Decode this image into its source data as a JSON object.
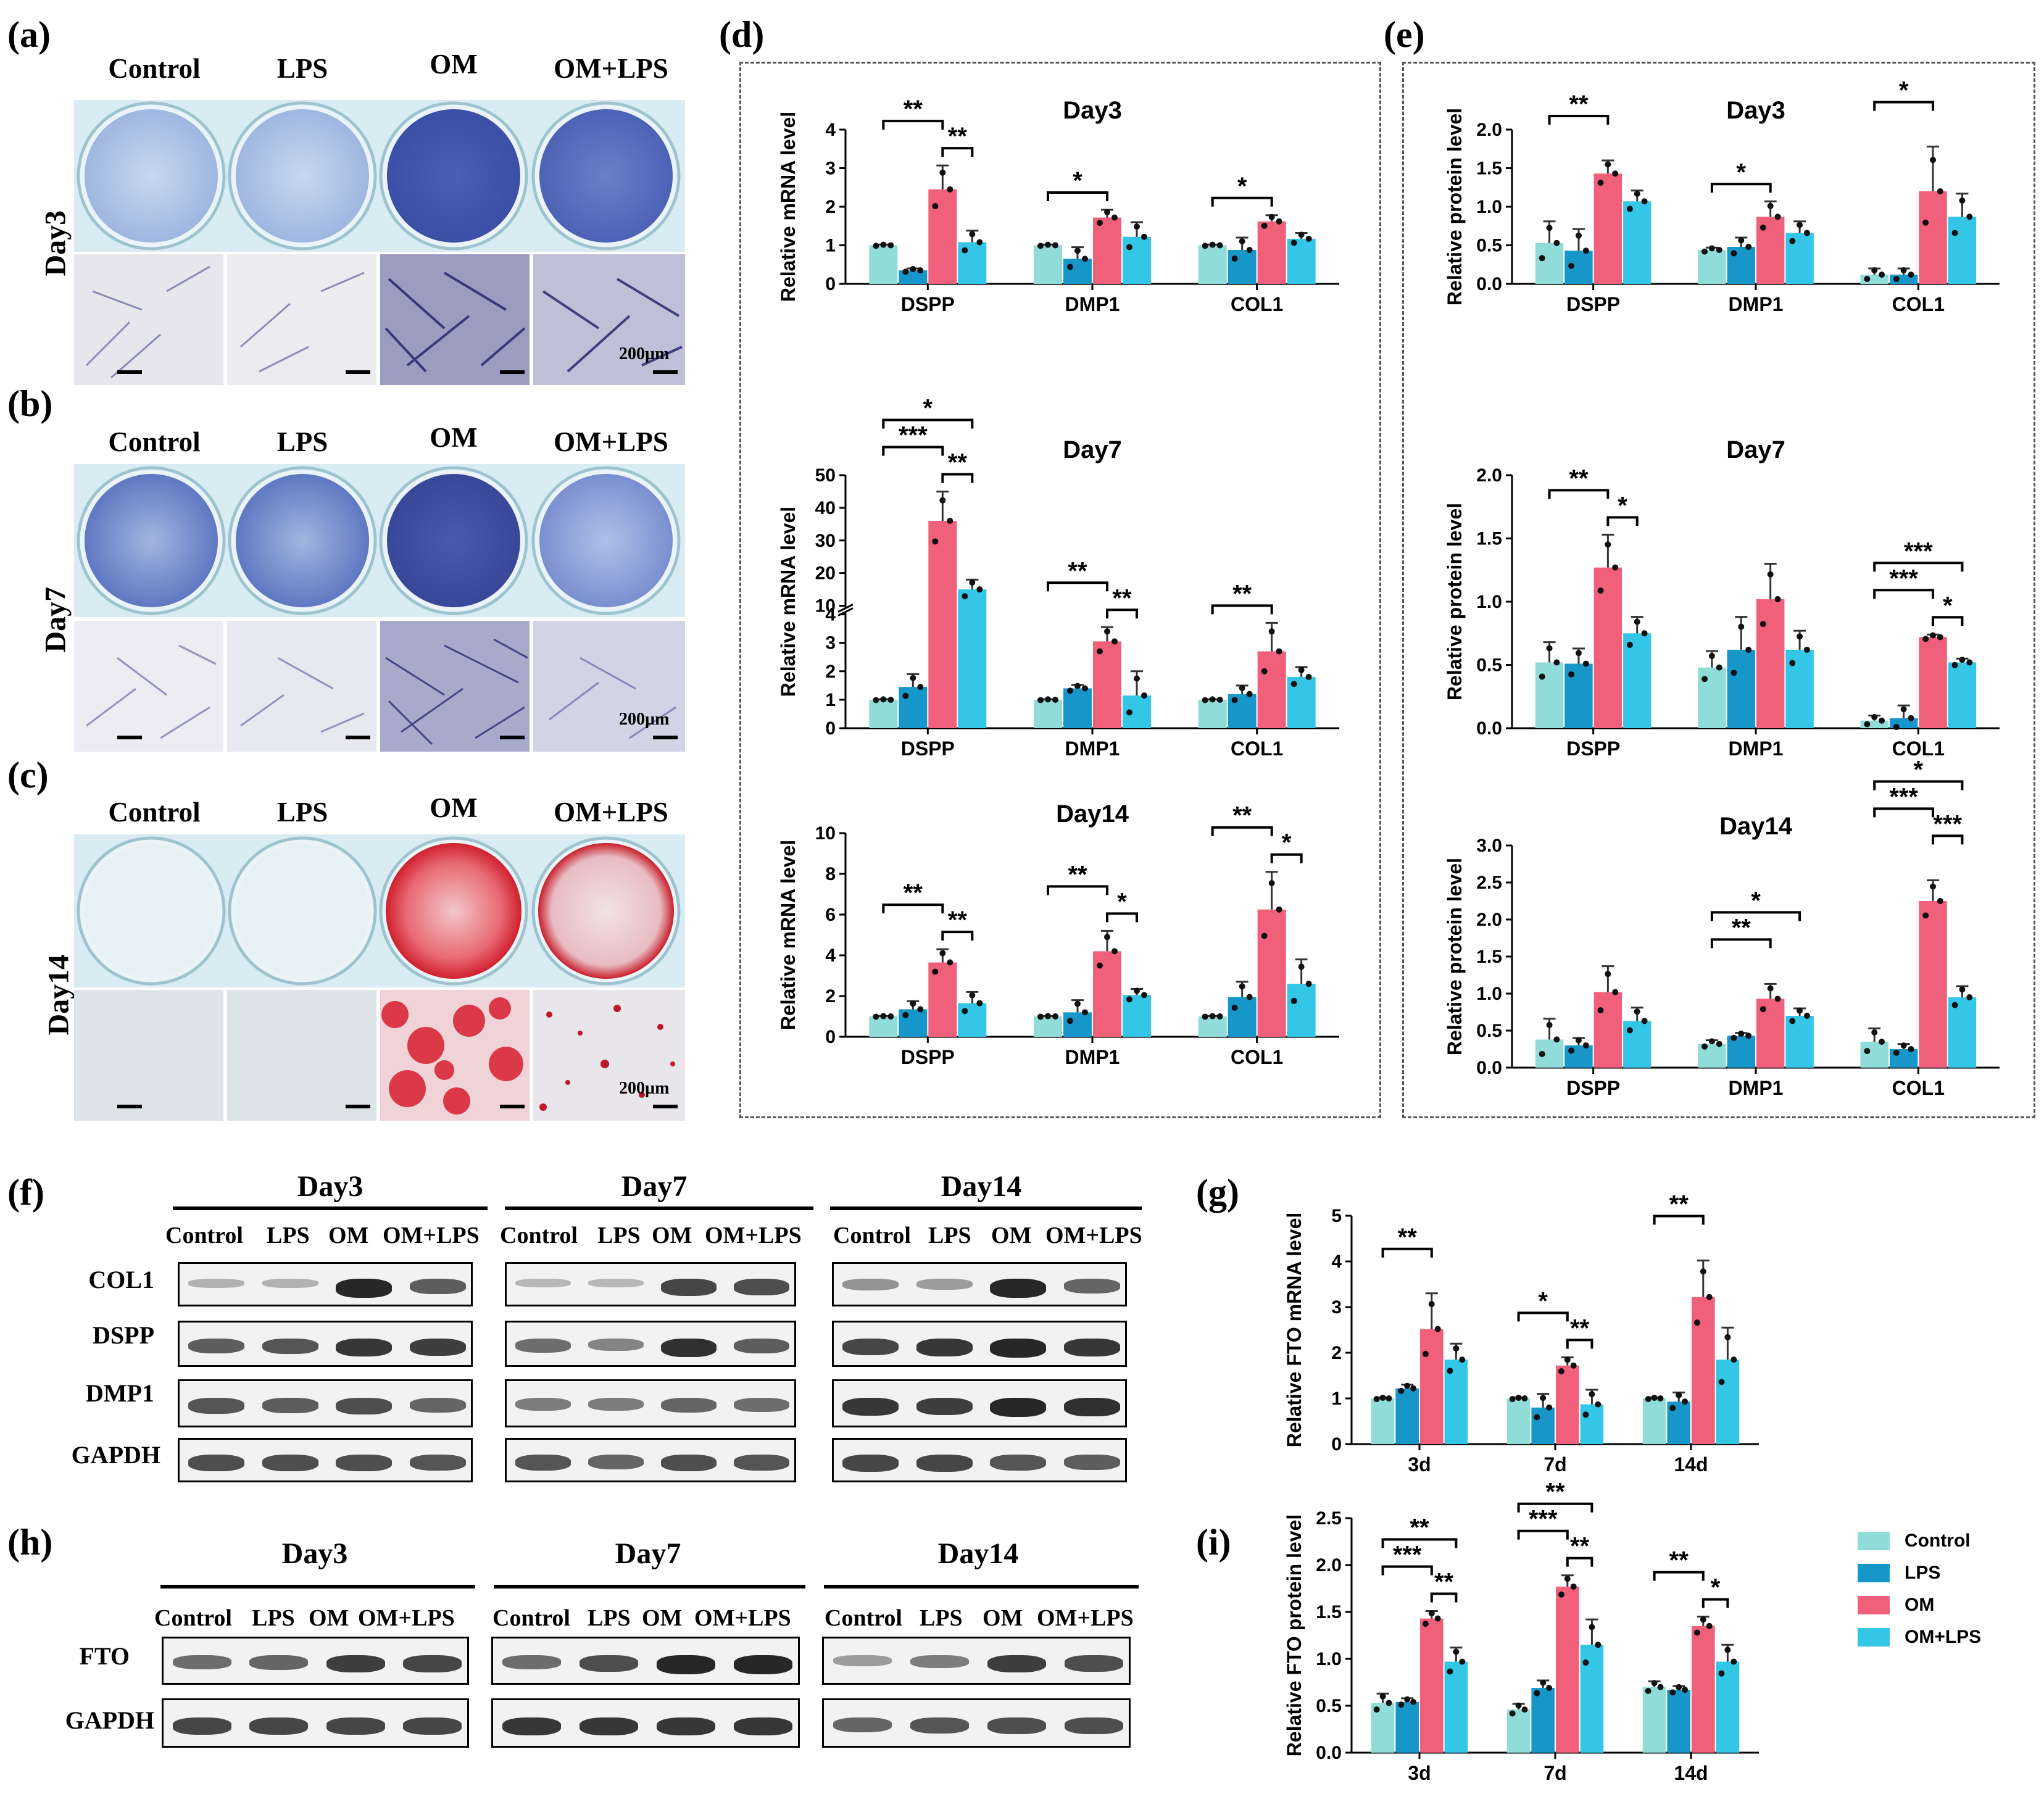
{
  "colors": {
    "Control": "#8fdcd9",
    "LPS": "#1796c9",
    "OM": "#f0607a",
    "OM+LPS": "#33c6e6"
  },
  "groups": [
    "Control",
    "LPS",
    "OM",
    "OM+LPS"
  ],
  "panels": {
    "a": {
      "label": "(a)",
      "day": "Day3",
      "scale": "200µm"
    },
    "b": {
      "label": "(b)",
      "day": "Day7",
      "scale": "200µm"
    },
    "c": {
      "label": "(c)",
      "day": "Day14",
      "scale": "200µm"
    },
    "d": {
      "label": "(d)"
    },
    "e": {
      "label": "(e)"
    },
    "f": {
      "label": "(f)",
      "days": [
        "Day3",
        "Day7",
        "Day14"
      ],
      "rows": [
        "COL1",
        "DSPP",
        "DMP1",
        "GAPDH"
      ],
      "lanes": [
        "Control",
        "LPS",
        "OM",
        "OM+LPS"
      ]
    },
    "g": {
      "label": "(g)"
    },
    "h": {
      "label": "(h)",
      "days": [
        "Day3",
        "Day7",
        "Day14"
      ],
      "rows": [
        "FTO",
        "GAPDH"
      ],
      "lanes": [
        "Control",
        "LPS",
        "OM",
        "OM+LPS"
      ]
    },
    "i": {
      "label": "(i)"
    }
  },
  "legend": [
    "Control",
    "LPS",
    "OM",
    "OM+LPS"
  ],
  "chart_data": [
    {
      "id": "d1",
      "type": "bar",
      "title": "Day3",
      "ylabel": "Relative mRNA level",
      "ylim": [
        0,
        4
      ],
      "yticks": [
        0,
        1,
        2,
        3,
        4
      ],
      "categories": [
        "DSPP",
        "DMP1",
        "COL1"
      ],
      "series": [
        {
          "name": "Control",
          "values": [
            1.0,
            1.0,
            1.0
          ],
          "err": [
            0.02,
            0.02,
            0.02
          ]
        },
        {
          "name": "LPS",
          "values": [
            0.35,
            0.65,
            0.88
          ],
          "err": [
            0.05,
            0.3,
            0.32
          ]
        },
        {
          "name": "OM",
          "values": [
            2.45,
            1.72,
            1.62
          ],
          "err": [
            0.62,
            0.2,
            0.16
          ]
        },
        {
          "name": "OM+LPS",
          "values": [
            1.08,
            1.22,
            1.17
          ],
          "err": [
            0.3,
            0.38,
            0.15
          ]
        }
      ],
      "sig": [
        {
          "c": 0,
          "a": 0,
          "b": 2,
          "level": 1,
          "label": "**"
        },
        {
          "c": 0,
          "a": 2,
          "b": 3,
          "level": 0,
          "label": "**"
        },
        {
          "c": 1,
          "a": 0,
          "b": 2,
          "level": 0,
          "label": "*"
        },
        {
          "c": 2,
          "a": 0,
          "b": 2,
          "level": 0,
          "label": "*"
        }
      ]
    },
    {
      "id": "d2",
      "type": "bar",
      "title": "Day7",
      "ylabel": "Relative mRNA level",
      "ylim": [
        0,
        50
      ],
      "break": [
        4,
        10
      ],
      "yticks": [
        0,
        1,
        2,
        3,
        4,
        10,
        20,
        30,
        40,
        50
      ],
      "categories": [
        "DSPP",
        "DMP1",
        "COL1"
      ],
      "series": [
        {
          "name": "Control",
          "values": [
            1.0,
            1.0,
            1.0
          ],
          "err": [
            0.02,
            0.02,
            0.02
          ]
        },
        {
          "name": "LPS",
          "values": [
            1.45,
            1.4,
            1.2
          ],
          "err": [
            0.45,
            0.12,
            0.3
          ]
        },
        {
          "name": "OM",
          "values": [
            36,
            3.05,
            2.7
          ],
          "err": [
            9,
            0.5,
            1.0
          ]
        },
        {
          "name": "OM+LPS",
          "values": [
            15,
            1.15,
            1.8
          ],
          "err": [
            3,
            0.85,
            0.35
          ]
        }
      ],
      "sig": [
        {
          "c": 0,
          "a": 0,
          "b": 3,
          "level": 2,
          "label": "*"
        },
        {
          "c": 0,
          "a": 0,
          "b": 2,
          "level": 1,
          "label": "***"
        },
        {
          "c": 0,
          "a": 2,
          "b": 3,
          "level": 0,
          "label": "**"
        },
        {
          "c": 1,
          "a": 0,
          "b": 2,
          "level": 1,
          "label": "**"
        },
        {
          "c": 1,
          "a": 2,
          "b": 3,
          "level": 0,
          "label": "**"
        },
        {
          "c": 2,
          "a": 0,
          "b": 2,
          "level": 0,
          "label": "**"
        }
      ]
    },
    {
      "id": "d3",
      "type": "bar",
      "title": "Day14",
      "ylabel": "Relative mRNA level",
      "ylim": [
        0,
        10
      ],
      "yticks": [
        0,
        2,
        4,
        6,
        8,
        10
      ],
      "categories": [
        "DSPP",
        "DMP1",
        "COL1"
      ],
      "series": [
        {
          "name": "Control",
          "values": [
            1.0,
            1.0,
            1.0
          ],
          "err": [
            0.02,
            0.02,
            0.02
          ]
        },
        {
          "name": "LPS",
          "values": [
            1.35,
            1.2,
            1.95
          ],
          "err": [
            0.4,
            0.6,
            0.75
          ]
        },
        {
          "name": "OM",
          "values": [
            3.65,
            4.2,
            6.25
          ],
          "err": [
            0.65,
            1.0,
            1.85
          ]
        },
        {
          "name": "OM+LPS",
          "values": [
            1.65,
            2.05,
            2.6
          ],
          "err": [
            0.55,
            0.3,
            1.2
          ]
        }
      ],
      "sig": [
        {
          "c": 0,
          "a": 0,
          "b": 2,
          "level": 1,
          "label": "**"
        },
        {
          "c": 0,
          "a": 2,
          "b": 3,
          "level": 0,
          "label": "**"
        },
        {
          "c": 1,
          "a": 0,
          "b": 2,
          "level": 1,
          "label": "**"
        },
        {
          "c": 1,
          "a": 2,
          "b": 3,
          "level": 0,
          "label": "*"
        },
        {
          "c": 2,
          "a": 0,
          "b": 2,
          "level": 1,
          "label": "**"
        },
        {
          "c": 2,
          "a": 2,
          "b": 3,
          "level": 0,
          "label": "*"
        }
      ]
    },
    {
      "id": "e1",
      "type": "bar",
      "title": "Day3",
      "ylabel": "Relative protein level",
      "ylim": [
        0,
        2.0
      ],
      "yticks": [
        0,
        0.5,
        1.0,
        1.5,
        2.0
      ],
      "categories": [
        "DSPP",
        "DMP1",
        "COL1"
      ],
      "series": [
        {
          "name": "Control",
          "values": [
            0.53,
            0.44,
            0.12
          ],
          "err": [
            0.28,
            0.03,
            0.08
          ]
        },
        {
          "name": "LPS",
          "values": [
            0.43,
            0.48,
            0.12
          ],
          "err": [
            0.28,
            0.12,
            0.08
          ]
        },
        {
          "name": "OM",
          "values": [
            1.43,
            0.87,
            1.2
          ],
          "err": [
            0.17,
            0.2,
            0.58
          ]
        },
        {
          "name": "OM+LPS",
          "values": [
            1.07,
            0.66,
            0.87
          ],
          "err": [
            0.14,
            0.15,
            0.3
          ]
        }
      ],
      "sig": [
        {
          "c": 0,
          "a": 0,
          "b": 2,
          "level": 1,
          "label": "**"
        },
        {
          "c": 1,
          "a": 0,
          "b": 2,
          "level": 0,
          "label": "*"
        },
        {
          "c": 2,
          "a": 0,
          "b": 2,
          "level": 1,
          "label": "*"
        }
      ]
    },
    {
      "id": "e2",
      "type": "bar",
      "title": "Day7",
      "ylabel": "Relative protein level",
      "ylim": [
        0,
        2.0
      ],
      "yticks": [
        0,
        0.5,
        1.0,
        1.5,
        2.0
      ],
      "categories": [
        "DSPP",
        "DMP1",
        "COL1"
      ],
      "series": [
        {
          "name": "Control",
          "values": [
            0.52,
            0.48,
            0.06
          ],
          "err": [
            0.16,
            0.13,
            0.04
          ]
        },
        {
          "name": "LPS",
          "values": [
            0.51,
            0.62,
            0.08
          ],
          "err": [
            0.12,
            0.26,
            0.1
          ]
        },
        {
          "name": "OM",
          "values": [
            1.27,
            1.02,
            0.72
          ],
          "err": [
            0.26,
            0.28,
            0.02
          ]
        },
        {
          "name": "OM+LPS",
          "values": [
            0.75,
            0.62,
            0.52
          ],
          "err": [
            0.13,
            0.15,
            0.03
          ]
        }
      ],
      "sig": [
        {
          "c": 0,
          "a": 0,
          "b": 2,
          "level": 1,
          "label": "**"
        },
        {
          "c": 0,
          "a": 2,
          "b": 3,
          "level": 0,
          "label": "*"
        },
        {
          "c": 2,
          "a": 0,
          "b": 3,
          "level": 2,
          "label": "***"
        },
        {
          "c": 2,
          "a": 0,
          "b": 2,
          "level": 1,
          "label": "***"
        },
        {
          "c": 2,
          "a": 2,
          "b": 3,
          "level": 0,
          "label": "*"
        }
      ]
    },
    {
      "id": "e3",
      "type": "bar",
      "title": "Day14",
      "ylabel": "Relative protein level",
      "ylim": [
        0,
        3.0
      ],
      "yticks": [
        0,
        0.5,
        1.0,
        1.5,
        2.0,
        2.5,
        3.0
      ],
      "categories": [
        "DSPP",
        "DMP1",
        "COL1"
      ],
      "series": [
        {
          "name": "Control",
          "values": [
            0.38,
            0.32,
            0.35
          ],
          "err": [
            0.28,
            0.05,
            0.18
          ]
        },
        {
          "name": "LPS",
          "values": [
            0.3,
            0.43,
            0.25
          ],
          "err": [
            0.1,
            0.04,
            0.07
          ]
        },
        {
          "name": "OM",
          "values": [
            1.02,
            0.93,
            2.25
          ],
          "err": [
            0.35,
            0.2,
            0.28
          ]
        },
        {
          "name": "OM+LPS",
          "values": [
            0.63,
            0.7,
            0.95
          ],
          "err": [
            0.18,
            0.1,
            0.15
          ]
        }
      ],
      "sig": [
        {
          "c": 1,
          "a": 0,
          "b": 3,
          "level": 2,
          "label": "*"
        },
        {
          "c": 1,
          "a": 0,
          "b": 2,
          "level": 1,
          "label": "**"
        },
        {
          "c": 2,
          "a": 0,
          "b": 3,
          "level": 3,
          "label": "*"
        },
        {
          "c": 2,
          "a": 0,
          "b": 2,
          "level": 2,
          "label": "***"
        },
        {
          "c": 2,
          "a": 2,
          "b": 3,
          "level": 1,
          "label": "***"
        }
      ]
    },
    {
      "id": "g",
      "type": "bar",
      "title": "",
      "ylabel": "Relative FTO mRNA level",
      "ylim": [
        0,
        5
      ],
      "yticks": [
        0,
        1,
        2,
        3,
        4,
        5
      ],
      "categories": [
        "3d",
        "7d",
        "14d"
      ],
      "series": [
        {
          "name": "Control",
          "values": [
            1.0,
            1.0,
            1.0
          ],
          "err": [
            0.02,
            0.02,
            0.02
          ]
        },
        {
          "name": "LPS",
          "values": [
            1.22,
            0.8,
            0.93
          ],
          "err": [
            0.08,
            0.3,
            0.2
          ]
        },
        {
          "name": "OM",
          "values": [
            2.52,
            1.72,
            3.22
          ],
          "err": [
            0.78,
            0.18,
            0.8
          ]
        },
        {
          "name": "OM+LPS",
          "values": [
            1.85,
            0.87,
            1.85
          ],
          "err": [
            0.35,
            0.32,
            0.7
          ]
        }
      ],
      "sig": [
        {
          "c": 0,
          "a": 0,
          "b": 2,
          "level": 1,
          "label": "**"
        },
        {
          "c": 1,
          "a": 0,
          "b": 2,
          "level": 1,
          "label": "*"
        },
        {
          "c": 1,
          "a": 2,
          "b": 3,
          "level": 0,
          "label": "**"
        },
        {
          "c": 2,
          "a": 0,
          "b": 2,
          "level": 1,
          "label": "**"
        }
      ]
    },
    {
      "id": "i",
      "type": "bar",
      "title": "",
      "ylabel": "Relative FTO protein level",
      "ylim": [
        0,
        2.5
      ],
      "yticks": [
        0,
        0.5,
        1.0,
        1.5,
        2.0,
        2.5
      ],
      "categories": [
        "3d",
        "7d",
        "14d"
      ],
      "series": [
        {
          "name": "Control",
          "values": [
            0.53,
            0.46,
            0.7
          ],
          "err": [
            0.1,
            0.06,
            0.06
          ]
        },
        {
          "name": "LPS",
          "values": [
            0.54,
            0.69,
            0.67
          ],
          "err": [
            0.04,
            0.08,
            0.04
          ]
        },
        {
          "name": "OM",
          "values": [
            1.43,
            1.77,
            1.35
          ],
          "err": [
            0.08,
            0.12,
            0.1
          ]
        },
        {
          "name": "OM+LPS",
          "values": [
            0.97,
            1.15,
            0.97
          ],
          "err": [
            0.15,
            0.27,
            0.18
          ]
        }
      ],
      "sig": [
        {
          "c": 0,
          "a": 0,
          "b": 3,
          "level": 2,
          "label": "**"
        },
        {
          "c": 0,
          "a": 0,
          "b": 2,
          "level": 1,
          "label": "***"
        },
        {
          "c": 0,
          "a": 2,
          "b": 3,
          "level": 0,
          "label": "**"
        },
        {
          "c": 1,
          "a": 0,
          "b": 3,
          "level": 2,
          "label": "**"
        },
        {
          "c": 1,
          "a": 0,
          "b": 2,
          "level": 1,
          "label": "***"
        },
        {
          "c": 1,
          "a": 2,
          "b": 3,
          "level": 0,
          "label": "**"
        },
        {
          "c": 2,
          "a": 0,
          "b": 2,
          "level": 1,
          "label": "**"
        },
        {
          "c": 2,
          "a": 2,
          "b": 3,
          "level": 0,
          "label": "*"
        }
      ]
    }
  ]
}
